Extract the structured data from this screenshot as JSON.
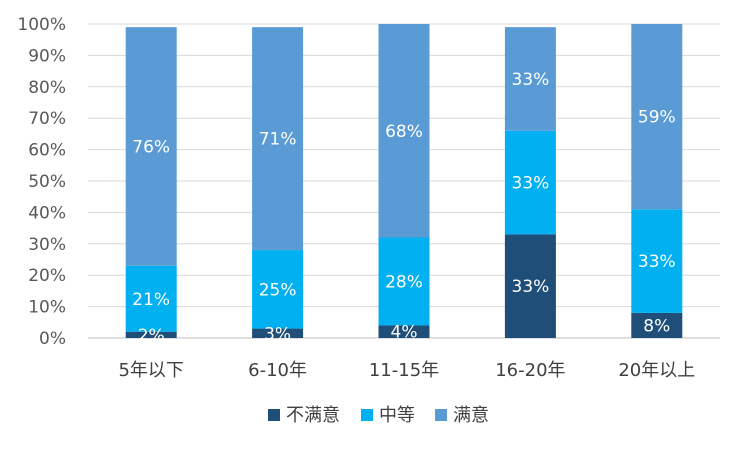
{
  "chart_data": {
    "type": "bar",
    "stacked": true,
    "percent_stacked": true,
    "categories": [
      "5年以下",
      "6-10年",
      "11-15年",
      "16-20年",
      "20年以上"
    ],
    "series": [
      {
        "name": "不满意",
        "color": "#1f4e79",
        "values": [
          2,
          3,
          4,
          33,
          8
        ],
        "labels": [
          "2%",
          "3%",
          "4%",
          "33%",
          "8%"
        ]
      },
      {
        "name": "中等",
        "color": "#00b0f0",
        "values": [
          21,
          25,
          28,
          33,
          33
        ],
        "labels": [
          "21%",
          "25%",
          "28%",
          "33%",
          "33%"
        ]
      },
      {
        "name": "满意",
        "color": "#5b9bd5",
        "values": [
          76,
          71,
          68,
          33,
          59
        ],
        "labels": [
          "76%",
          "71%",
          "68%",
          "33%",
          "59%"
        ]
      }
    ],
    "y_ticks": [
      "0%",
      "10%",
      "20%",
      "30%",
      "40%",
      "50%",
      "60%",
      "70%",
      "80%",
      "90%",
      "100%"
    ],
    "ylim": [
      0,
      100
    ],
    "grid": true,
    "legend_position": "bottom"
  }
}
